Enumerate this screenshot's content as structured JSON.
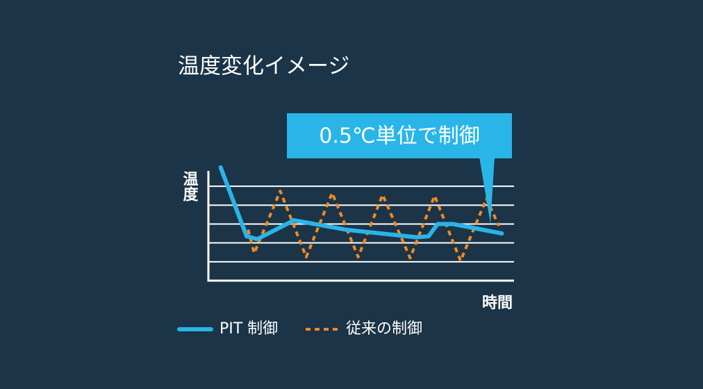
{
  "chart_data": {
    "type": "line",
    "title": "温度変化イメージ",
    "y_label": "温度",
    "x_label": "時間",
    "annotation": "0.5℃単位で制御",
    "xlim": [
      0,
      10
    ],
    "ylim": [
      0,
      6
    ],
    "yticks": [
      1,
      2,
      3,
      4,
      5
    ],
    "grid": true,
    "series": [
      {
        "name": "PIT 制御",
        "color": "#29b5e8",
        "style": "solid",
        "x": [
          0.4,
          1.25,
          1.6,
          2.2,
          2.8,
          4.5,
          6.8,
          7.2,
          7.5,
          8.0,
          9.6
        ],
        "values": [
          6.0,
          2.35,
          2.2,
          2.7,
          3.2,
          2.7,
          2.3,
          2.35,
          3.0,
          3.0,
          2.5
        ]
      },
      {
        "name": "従来の制御",
        "color": "#f08a24",
        "style": "dashed",
        "x": [
          1.3,
          1.5,
          2.35,
          3.2,
          4.05,
          4.9,
          5.7,
          6.6,
          7.4,
          8.25,
          9.1,
          9.5
        ],
        "values": [
          2.7,
          1.45,
          4.75,
          1.25,
          4.65,
          1.25,
          4.55,
          1.2,
          4.5,
          1.05,
          4.35,
          2.9
        ]
      }
    ]
  }
}
